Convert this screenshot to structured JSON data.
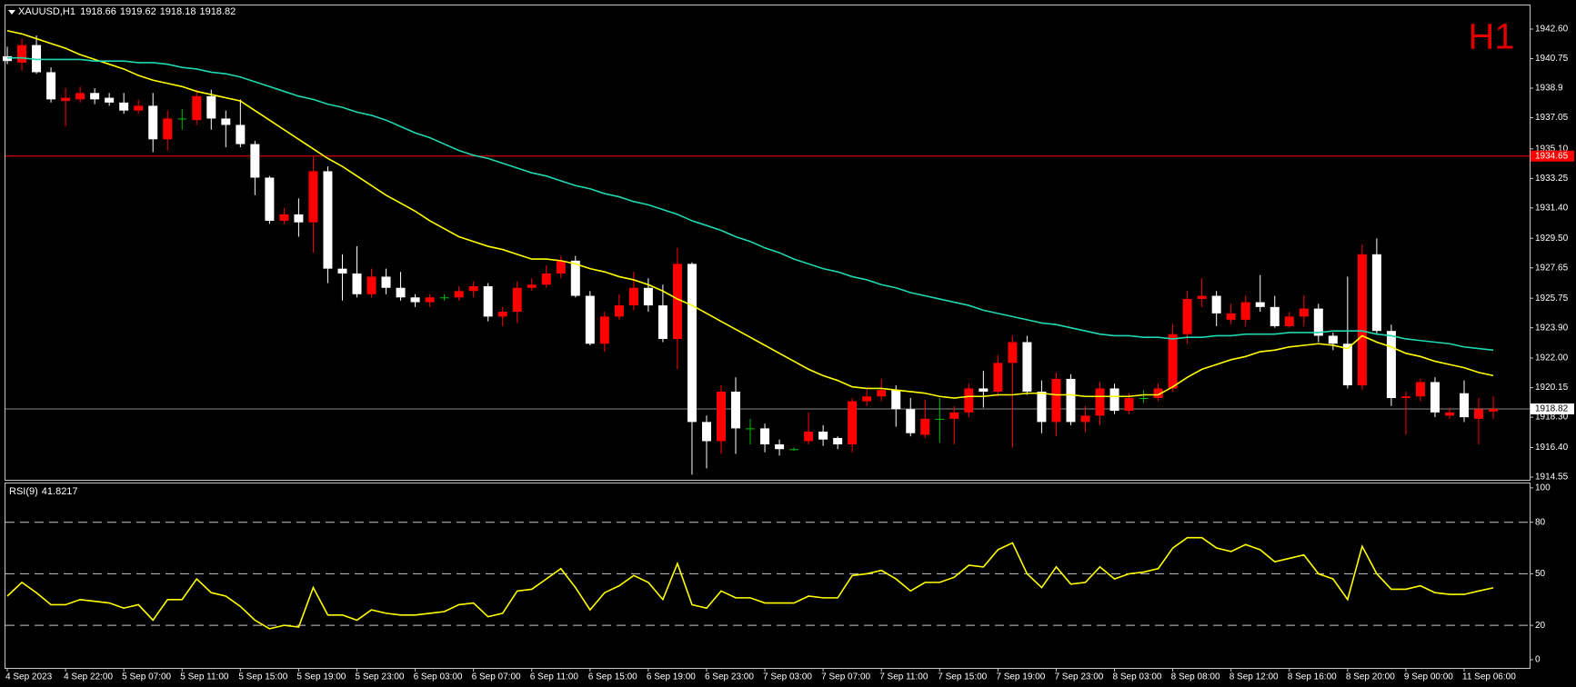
{
  "header": {
    "symbol": "XAUUSD,H1",
    "period_badge": "H1"
  },
  "chart_data": [
    {
      "type": "candlestick",
      "categories": [
        "4 Sep 2023",
        null,
        null,
        null,
        "4 Sep 22:00",
        null,
        null,
        null,
        "5 Sep 07:00",
        null,
        null,
        null,
        "5 Sep 11:00",
        null,
        null,
        null,
        "5 Sep 15:00",
        null,
        null,
        null,
        "5 Sep 19:00",
        null,
        null,
        null,
        "5 Sep 23:00",
        null,
        null,
        null,
        "6 Sep 03:00",
        null,
        null,
        null,
        "6 Sep 07:00",
        null,
        null,
        null,
        "6 Sep 11:00",
        null,
        null,
        null,
        "6 Sep 15:00",
        null,
        null,
        null,
        "6 Sep 19:00",
        null,
        null,
        null,
        "6 Sep 23:00",
        null,
        null,
        null,
        "7 Sep 03:00",
        null,
        null,
        null,
        "7 Sep 07:00",
        null,
        null,
        null,
        "7 Sep 11:00",
        null,
        null,
        null,
        "7 Sep 15:00",
        null,
        null,
        null,
        "7 Sep 19:00",
        null,
        null,
        null,
        "7 Sep 23:00",
        null,
        null,
        null,
        "8 Sep 03:00",
        null,
        null,
        null,
        "8 Sep 08:00",
        null,
        null,
        null,
        "8 Sep 12:00",
        null,
        null,
        null,
        "8 Sep 16:00",
        null,
        null,
        null,
        "8 Sep 20:00",
        null,
        null,
        null,
        "9 Sep 00:00",
        null,
        null,
        null,
        "11 Sep 06:00",
        null,
        null
      ],
      "open": [
        1940.9,
        1940.5,
        1941.6,
        1939.9,
        1938.1,
        1938.2,
        1938.6,
        1938.3,
        1938.0,
        1937.5,
        1937.8,
        1935.7,
        1937.0,
        1936.9,
        1938.4,
        1937.0,
        1936.6,
        1935.4,
        1933.3,
        1930.6,
        1931.0,
        1930.5,
        1933.7,
        1927.6,
        1927.3,
        1926.0,
        1927.1,
        1926.4,
        1925.8,
        1925.5,
        1925.8,
        1925.8,
        1926.2,
        1926.5,
        1924.6,
        1924.9,
        1926.4,
        1926.6,
        1927.3,
        1928.1,
        1925.9,
        1922.9,
        1924.6,
        1925.3,
        1926.4,
        1925.3,
        1923.2,
        1927.9,
        1918.0,
        1916.8,
        1919.9,
        1917.6,
        1917.6,
        1916.6,
        1916.3,
        1916.8,
        1917.4,
        1917.0,
        1916.6,
        1919.3,
        1919.6,
        1920.0,
        1918.8,
        1917.2,
        1918.2,
        1918.2,
        1918.6,
        1920.1,
        1919.9,
        1921.7,
        1923.0,
        1919.9,
        1918.0,
        1920.7,
        1918.0,
        1918.4,
        1920.1,
        1918.7,
        1919.5,
        1919.5,
        1920.1,
        1923.5,
        1925.7,
        1925.9,
        1924.4,
        1924.4,
        1925.5,
        1925.2,
        1924.0,
        1924.6,
        1925.1,
        1923.4,
        1922.9,
        1920.3,
        1928.5,
        1923.7,
        1919.5,
        1919.6,
        1920.5,
        1918.4,
        1919.8,
        1918.2,
        1918.66
      ],
      "high": [
        1941.5,
        1942.0,
        1942.2,
        1940.2,
        1938.9,
        1939.0,
        1938.9,
        1938.6,
        1938.6,
        1938.2,
        1938.6,
        1937.5,
        1937.6,
        1938.8,
        1938.8,
        1937.5,
        1938.2,
        1935.6,
        1933.4,
        1931.4,
        1932.0,
        1934.6,
        1934.0,
        1928.5,
        1929.0,
        1927.6,
        1927.6,
        1927.4,
        1926.0,
        1926.0,
        1926.0,
        1926.5,
        1926.8,
        1926.7,
        1925.2,
        1926.8,
        1927.0,
        1927.8,
        1928.4,
        1928.4,
        1926.2,
        1924.9,
        1926.0,
        1927.4,
        1927.0,
        1926.6,
        1928.9,
        1928.0,
        1918.4,
        1920.3,
        1920.8,
        1918.2,
        1917.9,
        1916.9,
        1916.4,
        1918.6,
        1917.8,
        1917.1,
        1919.5,
        1920.0,
        1920.7,
        1920.3,
        1919.5,
        1919.4,
        1919.5,
        1919.0,
        1920.4,
        1921.2,
        1922.2,
        1923.4,
        1923.4,
        1920.6,
        1921.1,
        1921.0,
        1919.0,
        1920.5,
        1920.4,
        1919.8,
        1920.0,
        1920.4,
        1924.1,
        1926.2,
        1927.0,
        1926.2,
        1925.4,
        1925.9,
        1927.2,
        1925.9,
        1924.9,
        1925.9,
        1925.4,
        1923.6,
        1927.1,
        1929.1,
        1929.5,
        1924.1,
        1919.9,
        1920.7,
        1920.8,
        1918.9,
        1920.6,
        1919.5,
        1919.62
      ],
      "low": [
        1940.4,
        1940.0,
        1939.8,
        1938.0,
        1936.5,
        1938.0,
        1937.9,
        1937.8,
        1937.3,
        1937.3,
        1934.9,
        1935.0,
        1936.3,
        1936.6,
        1936.3,
        1935.2,
        1935.2,
        1932.2,
        1930.4,
        1930.4,
        1929.6,
        1928.6,
        1926.7,
        1925.6,
        1925.8,
        1925.8,
        1926.0,
        1925.6,
        1925.2,
        1925.2,
        1925.6,
        1925.6,
        1925.8,
        1924.3,
        1924.0,
        1924.2,
        1926.2,
        1926.4,
        1927.0,
        1925.8,
        1922.8,
        1922.4,
        1924.4,
        1925.0,
        1924.9,
        1923.0,
        1921.3,
        1914.7,
        1915.1,
        1916.0,
        1916.0,
        1916.6,
        1916.1,
        1915.9,
        1916.2,
        1916.6,
        1916.5,
        1916.3,
        1916.1,
        1919.0,
        1919.3,
        1917.7,
        1917.1,
        1917.0,
        1916.7,
        1916.6,
        1918.3,
        1918.9,
        1919.6,
        1916.4,
        1919.7,
        1917.3,
        1917.1,
        1917.8,
        1917.4,
        1917.8,
        1918.5,
        1918.5,
        1919.2,
        1919.3,
        1919.9,
        1922.9,
        1925.2,
        1924.0,
        1924.1,
        1924.0,
        1924.9,
        1923.9,
        1923.9,
        1924.0,
        1923.0,
        1922.5,
        1920.1,
        1920.0,
        1923.5,
        1919.0,
        1917.2,
        1919.3,
        1918.3,
        1918.2,
        1918.0,
        1916.6,
        1918.18
      ],
      "close": [
        1940.6,
        1941.6,
        1939.9,
        1938.2,
        1938.3,
        1938.6,
        1938.2,
        1938.0,
        1937.5,
        1937.8,
        1935.7,
        1937.0,
        1937.0,
        1938.4,
        1937.0,
        1936.6,
        1935.4,
        1933.3,
        1930.6,
        1931.0,
        1930.5,
        1933.7,
        1927.6,
        1927.3,
        1926.0,
        1927.1,
        1926.4,
        1925.8,
        1925.5,
        1925.8,
        1925.8,
        1926.2,
        1926.5,
        1924.6,
        1924.9,
        1926.4,
        1926.6,
        1927.3,
        1928.1,
        1925.9,
        1922.9,
        1924.6,
        1925.3,
        1926.4,
        1925.3,
        1923.2,
        1927.9,
        1918.0,
        1916.8,
        1919.9,
        1917.6,
        1917.6,
        1916.6,
        1916.3,
        1916.3,
        1917.4,
        1916.9,
        1916.6,
        1919.3,
        1919.6,
        1920.0,
        1918.8,
        1917.3,
        1918.2,
        1918.2,
        1918.6,
        1920.1,
        1919.9,
        1921.7,
        1923.0,
        1919.9,
        1918.0,
        1920.7,
        1918.0,
        1918.4,
        1920.1,
        1918.7,
        1919.5,
        1919.5,
        1920.1,
        1923.5,
        1925.7,
        1925.9,
        1924.8,
        1924.8,
        1925.5,
        1925.2,
        1924.0,
        1924.6,
        1925.1,
        1923.4,
        1922.9,
        1920.3,
        1928.5,
        1923.7,
        1919.5,
        1919.6,
        1920.5,
        1918.6,
        1918.6,
        1918.3,
        1918.8,
        1918.82
      ],
      "up_color": "#ff0000",
      "down_color": "#ffffff",
      "doji_color": "#00c000",
      "moving_averages": [
        {
          "color": "#ffff00",
          "values": [
            1942.5,
            1942.3,
            1942.0,
            1941.7,
            1941.4,
            1941.0,
            1940.7,
            1940.4,
            1940.1,
            1939.7,
            1939.4,
            1939.2,
            1939.0,
            1938.7,
            1938.5,
            1938.3,
            1938.1,
            1937.5,
            1936.9,
            1936.3,
            1935.7,
            1935.1,
            1934.5,
            1934.0,
            1933.4,
            1932.8,
            1932.2,
            1931.7,
            1931.2,
            1930.6,
            1930.1,
            1929.6,
            1929.3,
            1929.0,
            1928.8,
            1928.5,
            1928.2,
            1928.2,
            1928.1,
            1927.9,
            1927.6,
            1927.4,
            1927.1,
            1926.9,
            1926.6,
            1926.2,
            1925.7,
            1925.3,
            1924.8,
            1924.3,
            1923.8,
            1923.3,
            1922.8,
            1922.3,
            1921.8,
            1921.3,
            1920.9,
            1920.6,
            1920.2,
            1920.1,
            1920.1,
            1920.0,
            1919.9,
            1919.8,
            1919.6,
            1919.5,
            1919.6,
            1919.6,
            1919.7,
            1919.7,
            1919.8,
            1919.8,
            1919.7,
            1919.7,
            1919.6,
            1919.6,
            1919.6,
            1919.6,
            1919.7,
            1919.7,
            1920.2,
            1920.8,
            1921.3,
            1921.6,
            1921.9,
            1922.1,
            1922.4,
            1922.5,
            1922.7,
            1922.8,
            1922.9,
            1922.8,
            1922.6,
            1923.4,
            1923.0,
            1922.7,
            1922.3,
            1922.1,
            1921.8,
            1921.6,
            1921.4,
            1921.1,
            1920.9
          ]
        },
        {
          "color": "#20d8b0",
          "values": [
            1940.8,
            1940.8,
            1940.7,
            1940.7,
            1940.7,
            1940.7,
            1940.6,
            1940.6,
            1940.6,
            1940.5,
            1940.5,
            1940.4,
            1940.2,
            1940.1,
            1939.9,
            1939.8,
            1939.6,
            1939.3,
            1939.0,
            1938.7,
            1938.4,
            1938.2,
            1937.9,
            1937.7,
            1937.4,
            1937.2,
            1936.9,
            1936.5,
            1936.1,
            1935.8,
            1935.4,
            1935.0,
            1934.7,
            1934.5,
            1934.2,
            1933.9,
            1933.6,
            1933.4,
            1933.1,
            1932.8,
            1932.6,
            1932.3,
            1932.1,
            1931.8,
            1931.6,
            1931.3,
            1931.0,
            1930.6,
            1930.3,
            1930.0,
            1929.6,
            1929.3,
            1928.9,
            1928.6,
            1928.2,
            1927.9,
            1927.6,
            1927.4,
            1927.1,
            1926.9,
            1926.6,
            1926.4,
            1926.1,
            1925.9,
            1925.7,
            1925.5,
            1925.3,
            1925.0,
            1924.8,
            1924.6,
            1924.4,
            1924.2,
            1924.1,
            1923.9,
            1923.7,
            1923.5,
            1923.4,
            1923.4,
            1923.3,
            1923.3,
            1923.2,
            1923.3,
            1923.3,
            1923.4,
            1923.4,
            1923.5,
            1923.5,
            1923.5,
            1923.6,
            1923.6,
            1923.6,
            1923.7,
            1923.7,
            1923.7,
            1923.5,
            1923.4,
            1923.2,
            1923.1,
            1923.0,
            1922.9,
            1922.7,
            1922.6,
            1922.5
          ]
        }
      ],
      "price_lines": [
        {
          "value": 1934.65,
          "color": "#ff0000",
          "box": "#ff0000",
          "text_color": "#ffffff"
        },
        {
          "value": 1918.82,
          "color": "#8a8a8a",
          "box": "#ffffff",
          "text_color": "#000000"
        }
      ],
      "ylim": [
        1914.38,
        1944.08
      ],
      "yticks": [
        {
          "value": 1942.6,
          "label": "1942.60"
        },
        1940.75,
        1938.9,
        1937.05,
        {
          "value": 1935.1,
          "label": "1935.10"
        },
        1933.25,
        {
          "value": 1931.4,
          "label": "1931.40"
        },
        {
          "value": 1929.5,
          "label": "1929.50"
        },
        1927.65,
        1925.75,
        {
          "value": 1923.9,
          "label": "1923.90"
        },
        {
          "value": 1922,
          "label": "1922.00"
        },
        1920.15,
        {
          "value": 1918.3,
          "label": "1918.30"
        },
        {
          "value": 1916.4,
          "label": "1916.40"
        },
        1914.55
      ]
    },
    {
      "type": "line",
      "title": "RSI(9)",
      "color": "#ffff00",
      "values": [
        37,
        45,
        39,
        32,
        32,
        35,
        34,
        33,
        30,
        32,
        23,
        35,
        35,
        47,
        39,
        37,
        31,
        23,
        18,
        20,
        19,
        42,
        26,
        26,
        23,
        29,
        27,
        26,
        26,
        27,
        28,
        32,
        33,
        25,
        27,
        40,
        41,
        47,
        53,
        42,
        29,
        39,
        43,
        49,
        45,
        35,
        56,
        32,
        30,
        40,
        36,
        36,
        33,
        33,
        33,
        37,
        36,
        36,
        49,
        50,
        52,
        47,
        40,
        45,
        45,
        48,
        55,
        54,
        64,
        68,
        50,
        42,
        54,
        44,
        45,
        54,
        47,
        50,
        51,
        53,
        65,
        71,
        71,
        65,
        63,
        67,
        64,
        57,
        59,
        61,
        50,
        47,
        35,
        66,
        50,
        41,
        41,
        43,
        39,
        38,
        38,
        40,
        41.8217
      ],
      "ylim": [
        -4.8,
        102.6
      ],
      "yticks": [
        0,
        20,
        50,
        80,
        100
      ],
      "levels": [
        20,
        50,
        80
      ]
    }
  ]
}
